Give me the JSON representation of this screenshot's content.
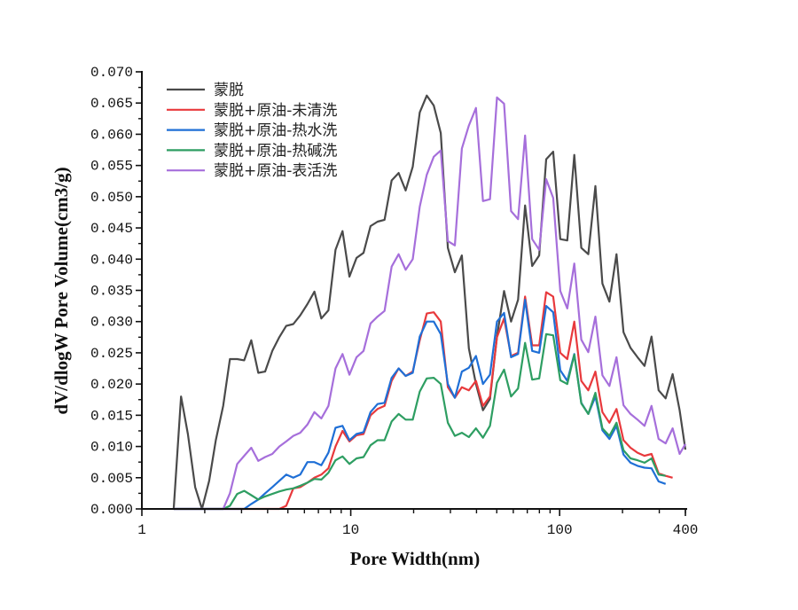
{
  "chart_data": {
    "type": "line",
    "title": "",
    "xlabel": "Pore Width(nm)",
    "ylabel": "dV/dlogW Pore Volume(cm3/g)",
    "xscale": "log",
    "xlim": [
      1,
      400
    ],
    "ylim": [
      0,
      0.07
    ],
    "xticks": [
      1,
      10,
      100,
      400
    ],
    "xtick_labels": [
      "1",
      "10",
      "100",
      "400"
    ],
    "yticks": [
      0,
      0.005,
      0.01,
      0.015,
      0.02,
      0.025,
      0.03,
      0.035,
      0.04,
      0.045,
      0.05,
      0.055,
      0.06,
      0.065,
      0.07
    ],
    "ytick_labels": [
      "0.000",
      "0.005",
      "0.010",
      "0.015",
      "0.020",
      "0.025",
      "0.030",
      "0.035",
      "0.040",
      "0.045",
      "0.050",
      "0.055",
      "0.060",
      "0.065",
      "0.070"
    ],
    "grid": false,
    "legend_position": "top-left",
    "x": [
      1.42,
      1.54,
      1.66,
      1.8,
      1.94,
      2.1,
      2.26,
      2.45,
      2.64,
      2.86,
      3.09,
      3.34,
      3.61,
      3.89,
      4.21,
      4.55,
      4.91,
      5.31,
      5.73,
      6.2,
      6.7,
      7.23,
      7.82,
      8.45,
      9.13,
      9.86,
      10.66,
      11.51,
      12.44,
      13.44,
      14.52,
      15.69,
      16.96,
      18.32,
      19.8,
      21.39,
      23.11,
      24.97,
      26.98,
      29.16,
      31.51,
      34.04,
      36.78,
      39.74,
      42.95,
      46.41,
      50.14,
      54.18,
      58.54,
      63.26,
      68.35,
      73.85,
      79.8,
      86.22,
      93.16,
      100.7,
      108.8,
      117.5,
      127.0,
      137.2,
      148.3,
      160.2,
      173.1,
      187.1,
      202.1,
      218.4,
      236.0,
      255.0,
      275.4,
      297.7,
      321.6,
      347.5,
      375.5,
      400
    ],
    "series": [
      {
        "name": "蒙脱",
        "color": "#4a4a4a",
        "values": [
          0,
          0.018,
          0.012,
          0.0035,
          0,
          0.0045,
          0.011,
          0.0165,
          0.024,
          0.024,
          0.0238,
          0.027,
          0.0218,
          0.022,
          0.0253,
          0.0275,
          0.0293,
          0.0296,
          0.031,
          0.0328,
          0.0348,
          0.0305,
          0.0318,
          0.0415,
          0.0445,
          0.0372,
          0.0402,
          0.041,
          0.0453,
          0.046,
          0.0463,
          0.0526,
          0.0538,
          0.051,
          0.0548,
          0.0635,
          0.0662,
          0.0646,
          0.0602,
          0.0418,
          0.0379,
          0.0406,
          0.0257,
          0.02,
          0.0158,
          0.0176,
          0.0276,
          0.0349,
          0.03,
          0.0335,
          0.0486,
          0.0389,
          0.0406,
          0.056,
          0.0572,
          0.0432,
          0.043,
          0.0567,
          0.0418,
          0.0408,
          0.0517,
          0.0361,
          0.0332,
          0.0408,
          0.0283,
          0.0258,
          0.0243,
          0.0229,
          0.0276,
          0.019,
          0.0177,
          0.0216,
          0.0158,
          0.0095
        ]
      },
      {
        "name": "蒙脱+原油-未清洗",
        "color": "#e8393c",
        "values": [
          0,
          0,
          0,
          0,
          0,
          0,
          0,
          0,
          0,
          0,
          0,
          0,
          0,
          0,
          0,
          0,
          0.0005,
          0.0033,
          0.0035,
          0.0042,
          0.005,
          0.0055,
          0.0065,
          0.01,
          0.0125,
          0.0108,
          0.0118,
          0.012,
          0.015,
          0.016,
          0.0165,
          0.0205,
          0.0225,
          0.0213,
          0.022,
          0.027,
          0.0313,
          0.0315,
          0.03,
          0.0195,
          0.0178,
          0.0195,
          0.019,
          0.0205,
          0.0165,
          0.018,
          0.0275,
          0.0305,
          0.0245,
          0.025,
          0.034,
          0.0262,
          0.0262,
          0.0347,
          0.034,
          0.025,
          0.024,
          0.03,
          0.0205,
          0.019,
          0.022,
          0.0155,
          0.0138,
          0.016,
          0.011,
          0.0098,
          0.009,
          0.0085,
          0.0088,
          0.0057,
          0.0053,
          0.005,
          null,
          null
        ]
      },
      {
        "name": "蒙脱+原油-热水洗",
        "color": "#1f6fd6",
        "values": [
          0,
          0,
          0,
          0,
          0,
          0,
          0,
          0,
          0,
          0,
          0,
          0.0008,
          0.0015,
          0.0025,
          0.0035,
          0.0045,
          0.0055,
          0.005,
          0.0055,
          0.0075,
          0.0075,
          0.007,
          0.009,
          0.013,
          0.0133,
          0.011,
          0.012,
          0.0123,
          0.0155,
          0.0168,
          0.017,
          0.021,
          0.0225,
          0.0213,
          0.0218,
          0.0276,
          0.03,
          0.03,
          0.028,
          0.02,
          0.0178,
          0.022,
          0.0226,
          0.0245,
          0.02,
          0.0215,
          0.03,
          0.0314,
          0.0243,
          0.0248,
          0.0335,
          0.0253,
          0.025,
          0.0325,
          0.0315,
          0.0222,
          0.0205,
          0.0248,
          0.017,
          0.0152,
          0.018,
          0.0126,
          0.0112,
          0.0133,
          0.0087,
          0.0074,
          0.0069,
          0.0066,
          0.0065,
          0.0044,
          0.004,
          null,
          null,
          null
        ]
      },
      {
        "name": "蒙脱+原油-热碱洗",
        "color": "#2e9e62",
        "values": [
          0,
          0,
          0,
          0,
          0,
          0,
          0,
          0,
          0.0005,
          0.0024,
          0.0029,
          0.0022,
          0.0015,
          0.002,
          0.0024,
          0.0028,
          0.0031,
          0.0033,
          0.0037,
          0.0042,
          0.0048,
          0.0047,
          0.0058,
          0.0078,
          0.0084,
          0.0072,
          0.0081,
          0.0083,
          0.0102,
          0.011,
          0.011,
          0.014,
          0.0152,
          0.0143,
          0.0143,
          0.0188,
          0.0209,
          0.021,
          0.02,
          0.0138,
          0.0117,
          0.0122,
          0.0115,
          0.0129,
          0.0114,
          0.0133,
          0.0202,
          0.0223,
          0.018,
          0.0193,
          0.0266,
          0.0207,
          0.0209,
          0.028,
          0.0278,
          0.0206,
          0.02,
          0.0247,
          0.0169,
          0.0152,
          0.0186,
          0.0129,
          0.0117,
          0.0138,
          0.0094,
          0.0081,
          0.0078,
          0.0074,
          0.0081,
          0.0055,
          0.0053,
          null,
          null,
          null
        ]
      },
      {
        "name": "蒙脱+原油-表活洗",
        "color": "#a66fdb",
        "values": [
          0,
          0,
          0,
          0,
          0,
          0,
          0,
          0,
          0.0025,
          0.0072,
          0.0085,
          0.0098,
          0.0077,
          0.0083,
          0.0088,
          0.01,
          0.0108,
          0.0117,
          0.0122,
          0.0135,
          0.0155,
          0.0145,
          0.0165,
          0.0225,
          0.0248,
          0.0215,
          0.0243,
          0.0253,
          0.0297,
          0.0308,
          0.0317,
          0.0388,
          0.0408,
          0.0383,
          0.04,
          0.0484,
          0.0535,
          0.0564,
          0.0574,
          0.0429,
          0.0422,
          0.0577,
          0.0614,
          0.0642,
          0.0493,
          0.0496,
          0.0659,
          0.0649,
          0.0477,
          0.0464,
          0.0598,
          0.0432,
          0.0415,
          0.0528,
          0.0498,
          0.0349,
          0.0321,
          0.0393,
          0.0271,
          0.0251,
          0.0308,
          0.0214,
          0.0197,
          0.0243,
          0.0166,
          0.0152,
          0.0143,
          0.0133,
          0.0165,
          0.0112,
          0.0105,
          0.0129,
          0.0088,
          0.0104
        ]
      }
    ]
  }
}
